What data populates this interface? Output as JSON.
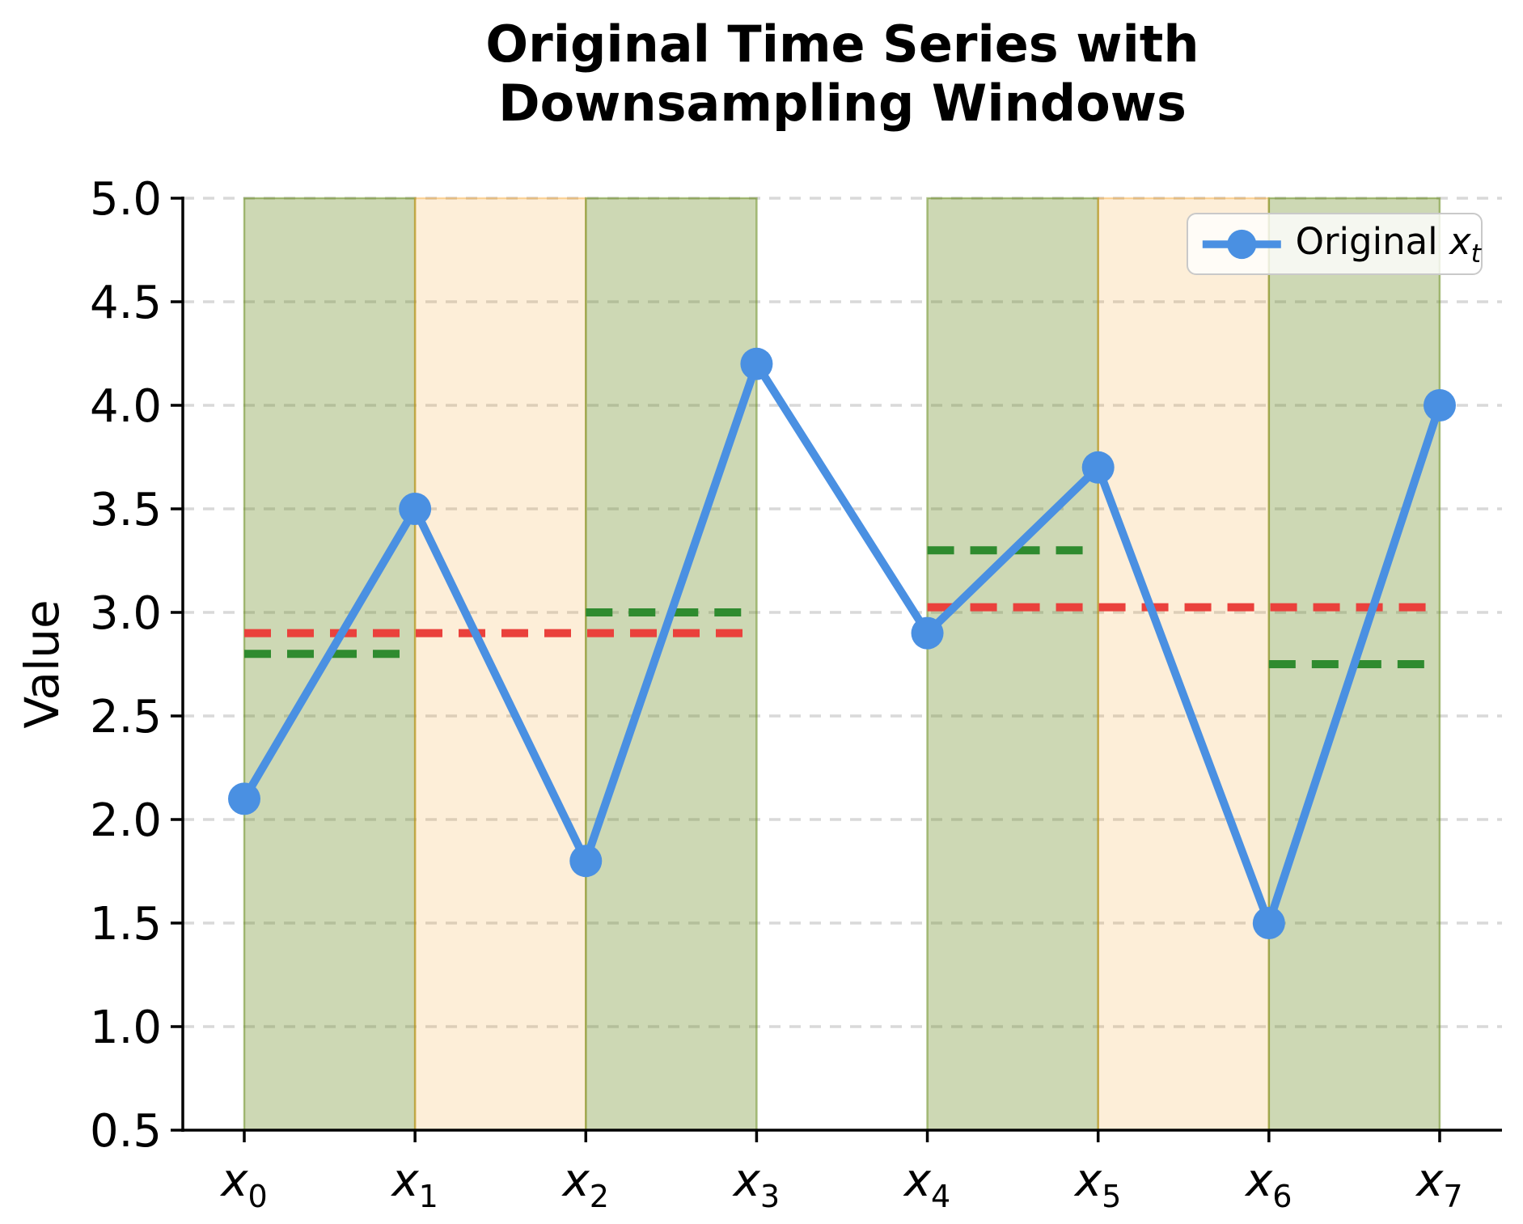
{
  "figure": {
    "title_line1": "Original Time Series with",
    "title_line2": "Downsampling Windows"
  },
  "chart_data": {
    "type": "line",
    "title": "Original Time Series with Downsampling Windows",
    "xlabel": "",
    "ylabel": "Value",
    "ylim": [
      0.5,
      5.0
    ],
    "grid": true,
    "x": [
      0,
      1,
      2,
      3,
      4,
      5,
      6,
      7
    ],
    "x_tick_labels": [
      "x_0",
      "x_1",
      "x_2",
      "x_3",
      "x_4",
      "x_5",
      "x_6",
      "x_7"
    ],
    "y_ticks": [
      0.5,
      1.0,
      1.5,
      2.0,
      2.5,
      3.0,
      3.5,
      4.0,
      4.5,
      5.0
    ],
    "series": [
      {
        "name": "Original x_t",
        "values": [
          2.1,
          3.5,
          1.8,
          4.2,
          2.9,
          3.7,
          1.5,
          4.0
        ],
        "color": "#4a90e2",
        "marker": "circle",
        "style": "solid"
      }
    ],
    "legend": {
      "position": "upper right",
      "entries": [
        {
          "label": "Original x_t",
          "color": "#4a90e2",
          "marker": "circle"
        }
      ]
    },
    "windows": [
      {
        "x_start": 0,
        "x_end": 1,
        "color": "green"
      },
      {
        "x_start": 1,
        "x_end": 2,
        "color": "orange"
      },
      {
        "x_start": 2,
        "x_end": 3,
        "color": "green"
      },
      {
        "x_start": 4,
        "x_end": 5,
        "color": "green"
      },
      {
        "x_start": 5,
        "x_end": 6,
        "color": "orange"
      },
      {
        "x_start": 6,
        "x_end": 7,
        "color": "green"
      }
    ],
    "mean_lines": [
      {
        "y": 2.9,
        "x_start": 0,
        "x_end": 3,
        "color": "red"
      },
      {
        "y": 3.025,
        "x_start": 4,
        "x_end": 7,
        "color": "red"
      },
      {
        "y": 2.8,
        "x_start": 0,
        "x_end": 1,
        "color": "green"
      },
      {
        "y": 3.0,
        "x_start": 2,
        "x_end": 3,
        "color": "green"
      },
      {
        "y": 3.3,
        "x_start": 4,
        "x_end": 5,
        "color": "green"
      },
      {
        "y": 2.75,
        "x_start": 6,
        "x_end": 7,
        "color": "green"
      }
    ],
    "colors": {
      "series_blue": "#4a90e2",
      "mean_red": "#ea413c",
      "pair_green": "#2f8b2f",
      "band_green_fill": "rgba(107,142,35,0.34)",
      "band_green_edge": "rgba(107,142,35,0.55)",
      "band_orange_fill": "rgba(245,150,10,0.16)",
      "band_orange_edge": "rgba(245,150,10,0.35)",
      "grid": "#d9d9d9",
      "axis": "#000000"
    }
  }
}
